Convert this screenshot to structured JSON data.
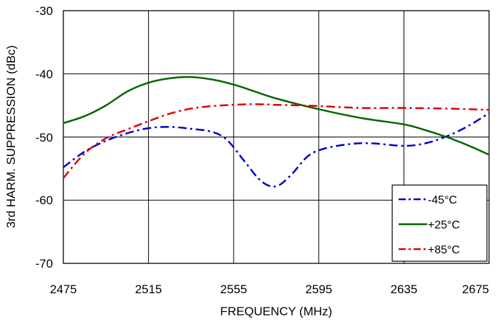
{
  "chart_data": {
    "type": "line",
    "title": "",
    "xlabel": "FREQUENCY (MHz)",
    "ylabel": "3rd HARM. SUPPRESSION (dBc)",
    "xlim": [
      2475,
      2675
    ],
    "ylim": [
      -70,
      -30
    ],
    "x_ticks": [
      "2475",
      "2515",
      "2555",
      "2595",
      "2635",
      "2675"
    ],
    "y_ticks": [
      "-30",
      "-40",
      "-50",
      "-60",
      "-70"
    ],
    "grid": true,
    "legend_position": "bottom-right",
    "series": [
      {
        "name": "-45°C",
        "color": "#0000cc",
        "style": "dash-dot",
        "x": [
          2475,
          2485,
          2495,
          2505,
          2515,
          2525,
          2535,
          2545,
          2552,
          2560,
          2568,
          2575,
          2582,
          2590,
          2598,
          2610,
          2620,
          2635,
          2645,
          2655,
          2665,
          2675
        ],
        "y": [
          -54.8,
          -52.3,
          -50.6,
          -49.4,
          -48.6,
          -48.4,
          -48.7,
          -49.2,
          -50.5,
          -53.8,
          -57.0,
          -57.8,
          -56.0,
          -53.0,
          -51.8,
          -51.1,
          -51.0,
          -51.4,
          -51.0,
          -49.9,
          -48.3,
          -46.2
        ]
      },
      {
        "name": "+25°C",
        "color": "#006600",
        "style": "solid",
        "x": [
          2475,
          2485,
          2495,
          2505,
          2515,
          2525,
          2535,
          2545,
          2555,
          2565,
          2575,
          2595,
          2615,
          2635,
          2645,
          2655,
          2665,
          2675
        ],
        "y": [
          -47.8,
          -46.7,
          -45.0,
          -42.8,
          -41.4,
          -40.7,
          -40.5,
          -40.9,
          -41.7,
          -42.8,
          -43.9,
          -45.6,
          -47.0,
          -48.0,
          -48.9,
          -50.0,
          -51.3,
          -52.8
        ]
      },
      {
        "name": "+85°C",
        "color": "#dd0000",
        "style": "dash-dot",
        "x": [
          2475,
          2485,
          2495,
          2505,
          2515,
          2525,
          2535,
          2545,
          2555,
          2565,
          2575,
          2595,
          2615,
          2635,
          2655,
          2675
        ],
        "y": [
          -56.5,
          -52.6,
          -50.2,
          -48.8,
          -47.5,
          -46.3,
          -45.5,
          -45.1,
          -44.9,
          -44.8,
          -44.9,
          -45.1,
          -45.4,
          -45.4,
          -45.5,
          -45.7
        ]
      }
    ]
  }
}
